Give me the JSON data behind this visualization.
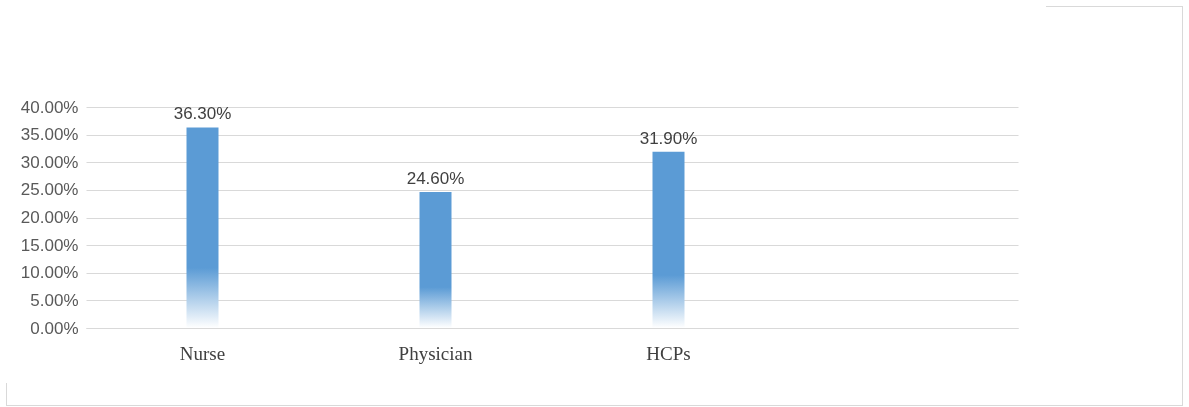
{
  "chart_data": {
    "type": "bar",
    "categories": [
      "Nurse",
      "Physician",
      "HCPs",
      null
    ],
    "values": [
      36.3,
      24.6,
      31.9,
      null
    ],
    "color": "#5b9bd5",
    "value_labels": [
      "36.30%",
      "24.60%",
      "31.90%",
      null
    ],
    "ylim": [
      0,
      40
    ],
    "yticks": [
      {
        "value": 0,
        "label": "0.00%"
      },
      {
        "value": 5,
        "label": "5.00%"
      },
      {
        "value": 10,
        "label": "10.00%"
      },
      {
        "value": 15,
        "label": "15.00%"
      },
      {
        "value": 20,
        "label": "20.00%"
      },
      {
        "value": 25,
        "label": "25.00%"
      },
      {
        "value": 30,
        "label": "30.00%"
      },
      {
        "value": 35,
        "label": "35.00%"
      },
      {
        "value": 40,
        "label": "40.00%"
      }
    ],
    "grid": "y"
  }
}
